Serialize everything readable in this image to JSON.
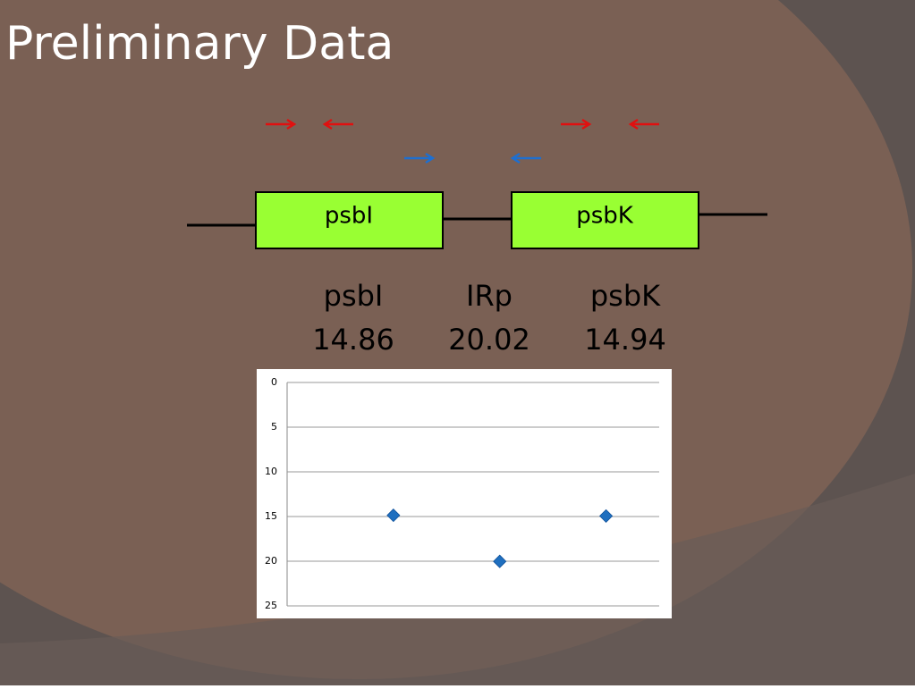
{
  "title": "Preliminary Data",
  "diagram": {
    "genes": [
      "psbI",
      "psbK"
    ]
  },
  "chart_data": {
    "type": "scatter",
    "categories": [
      "psbI",
      "IRp",
      "psbK"
    ],
    "values": [
      14.86,
      20.02,
      14.94
    ],
    "color": "#1f6fbf",
    "ylim": [
      0,
      25
    ],
    "yticks": [
      0,
      5,
      10,
      15,
      20,
      25
    ],
    "y_inverted": true,
    "grid": true
  }
}
